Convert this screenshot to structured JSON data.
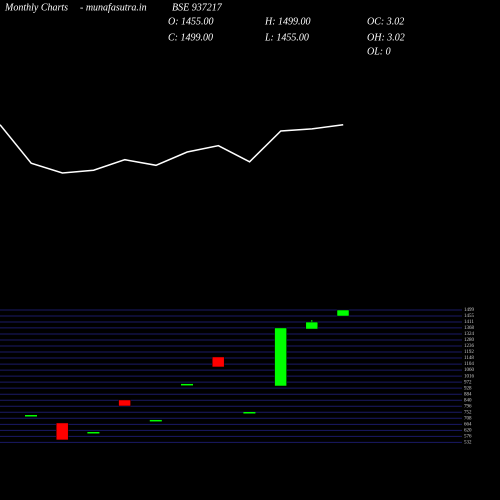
{
  "header": {
    "chart_name": "Monthly Charts",
    "site": "- munafasutra.in",
    "symbol": "BSE 937217",
    "open": "O: 1455.00",
    "high": "H: 1499.00",
    "oc": "OC: 3.02",
    "close": "C: 1499.00",
    "low": "L: 1455.00",
    "oh": "OH: 3.02",
    "ol": "OL: 0"
  },
  "chart_data": [
    {
      "type": "line",
      "color": "#ffffff",
      "values": [
        79,
        24,
        10,
        14,
        29,
        21,
        40,
        49,
        26,
        70,
        73,
        79
      ],
      "ylim": [
        0,
        100
      ]
    },
    {
      "type": "candlestick",
      "up_color": "#00ff00",
      "down_color": "#ff0000",
      "grid_color": "#1a1a66",
      "open": [
        732,
        674,
        608,
        842,
        696,
        959,
        1156,
        754,
        944,
        1360,
        1455
      ],
      "high": [
        732,
        674,
        608,
        842,
        696,
        959,
        1156,
        754,
        1368,
        1426,
        1499
      ],
      "low": [
        732,
        550,
        608,
        798,
        696,
        959,
        1083,
        754,
        944,
        1360,
        1455
      ],
      "close": [
        732,
        550,
        608,
        798,
        696,
        959,
        1083,
        754,
        1368,
        1411,
        1499
      ],
      "ylim": [
        513,
        1499
      ],
      "yticks": [
        1499,
        1455,
        1411,
        1368,
        1324,
        1280,
        1236,
        1192,
        1148,
        1104,
        1060,
        1016,
        972,
        928,
        884,
        840,
        796,
        752,
        708,
        664,
        620,
        576,
        532
      ]
    }
  ]
}
